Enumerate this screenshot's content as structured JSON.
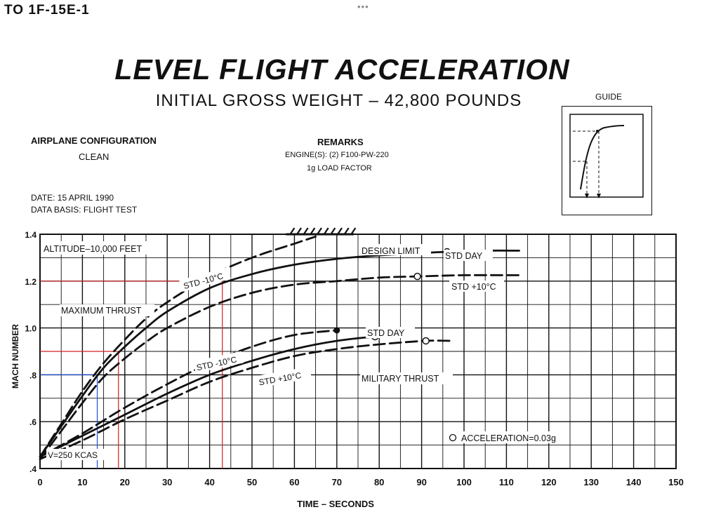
{
  "header": {
    "doc_id": "TO  1F-15E-1",
    "more": "•••"
  },
  "title": "LEVEL FLIGHT ACCELERATION",
  "subtitle": "INITIAL GROSS WEIGHT – 42,800 POUNDS",
  "config": {
    "label": "AIRPLANE CONFIGURATION",
    "value": "CLEAN"
  },
  "remarks": {
    "label": "REMARKS",
    "line1": "ENGINE(S): (2) F100-PW-220",
    "line2": "1g LOAD FACTOR"
  },
  "date_line": "DATE:  15 APRIL 1990",
  "basis_line": "DATA BASIS:  FLIGHT TEST",
  "guide_label": "GUIDE",
  "chart_data": {
    "type": "line",
    "xlabel": "TIME – SECONDS",
    "ylabel": "MACH NUMBER",
    "xlim": [
      0,
      150
    ],
    "ylim": [
      0.4,
      1.4
    ],
    "x_ticks": [
      "0",
      "10",
      "20",
      "30",
      "40",
      "50",
      "60",
      "70",
      "80",
      "90",
      "100",
      "110",
      "120",
      "130",
      "140",
      "150"
    ],
    "y_ticks": [
      ".4",
      ".6",
      ".8",
      "1.0",
      "1.2",
      "1.4"
    ],
    "grid": true,
    "annotations": {
      "altitude": "ALTITUDE–10,000 FEET",
      "design_limit": "DESIGN LIMIT",
      "max_thrust": "MAXIMUM THRUST",
      "mil_thrust": "MILITARY THRUST",
      "start_speed": "V=250 KCAS",
      "accel_legend": "ACCELERATION=0.03g"
    },
    "series": [
      {
        "name": "STD -10°C",
        "group": "MAXIMUM THRUST",
        "style": "dashed",
        "x": [
          0,
          5,
          10,
          15,
          20,
          25,
          30,
          40,
          50,
          60,
          65
        ],
        "y": [
          0.45,
          0.59,
          0.73,
          0.85,
          0.95,
          1.04,
          1.11,
          1.22,
          1.3,
          1.36,
          1.39
        ]
      },
      {
        "name": "STD DAY",
        "group": "MAXIMUM THRUST",
        "style": "solid",
        "x": [
          0,
          5,
          10,
          15,
          20,
          25,
          30,
          40,
          50,
          60,
          70,
          80,
          90,
          96,
          105,
          113
        ],
        "y": [
          0.45,
          0.58,
          0.71,
          0.83,
          0.92,
          1.0,
          1.07,
          1.17,
          1.23,
          1.27,
          1.295,
          1.31,
          1.32,
          1.325,
          1.33,
          1.33
        ]
      },
      {
        "name": "STD +10°C",
        "group": "MAXIMUM THRUST",
        "style": "dashed",
        "x": [
          0,
          5,
          10,
          15,
          20,
          25,
          30,
          40,
          50,
          60,
          70,
          80,
          89,
          100,
          113
        ],
        "y": [
          0.44,
          0.56,
          0.68,
          0.79,
          0.87,
          0.94,
          1.0,
          1.09,
          1.15,
          1.185,
          1.2,
          1.215,
          1.22,
          1.225,
          1.225
        ]
      },
      {
        "name": "STD -10°C",
        "group": "MILITARY THRUST",
        "style": "dashed",
        "x": [
          0,
          10,
          20,
          30,
          40,
          50,
          60,
          70
        ],
        "y": [
          0.45,
          0.55,
          0.66,
          0.76,
          0.85,
          0.92,
          0.97,
          0.99
        ]
      },
      {
        "name": "STD DAY",
        "group": "MILITARY THRUST",
        "style": "solid",
        "x": [
          0,
          10,
          20,
          30,
          40,
          50,
          60,
          70,
          79,
          85
        ],
        "y": [
          0.45,
          0.54,
          0.63,
          0.72,
          0.8,
          0.86,
          0.91,
          0.945,
          0.963,
          0.97
        ]
      },
      {
        "name": "STD +10°C",
        "group": "MILITARY THRUST",
        "style": "dashed",
        "x": [
          0,
          10,
          20,
          30,
          40,
          50,
          60,
          70,
          80,
          91,
          97
        ],
        "y": [
          0.44,
          0.52,
          0.61,
          0.69,
          0.77,
          0.83,
          0.88,
          0.91,
          0.93,
          0.945,
          0.945
        ]
      }
    ],
    "acceleration_points": [
      {
        "x": 96,
        "y": 1.325
      },
      {
        "x": 89,
        "y": 1.22
      },
      {
        "x": 79,
        "y": 0.963
      },
      {
        "x": 91,
        "y": 0.945
      }
    ],
    "solid_point": {
      "x": 70,
      "y": 0.99
    },
    "reference_lines": [
      {
        "color": "#1f4fd0",
        "x": 13.5,
        "y": 0.8
      },
      {
        "color": "#d02020",
        "x": 18.5,
        "y": 0.9
      },
      {
        "color": "#d02020",
        "x": 43,
        "y": 1.2
      }
    ],
    "design_limit_span": [
      58,
      74
    ],
    "design_limit_value": 1.4
  }
}
